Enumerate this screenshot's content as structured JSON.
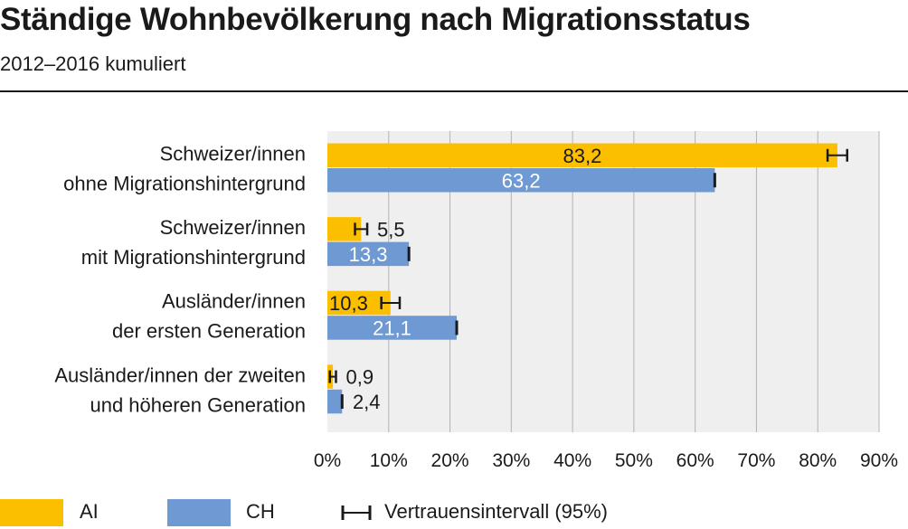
{
  "header": {
    "title": "Ständige Wohnbevölkerung nach Migrationsstatus",
    "subtitle": "2012–2016 kumuliert"
  },
  "legend": {
    "items": [
      {
        "label": "AI",
        "color": "#fbbf00"
      },
      {
        "label": "CH",
        "color": "#6f99d2"
      }
    ],
    "ci_label": "Vertrauensintervall (95%)"
  },
  "chart_data": {
    "type": "bar",
    "orientation": "horizontal",
    "xlim": [
      0,
      90
    ],
    "ticks": [
      0,
      10,
      20,
      30,
      40,
      50,
      60,
      70,
      80,
      90
    ],
    "tick_labels": [
      "0%",
      "10%",
      "20%",
      "30%",
      "40%",
      "50%",
      "60%",
      "70%",
      "80%",
      "90%"
    ],
    "grid": true,
    "legend_position": "bottom",
    "categories": [
      [
        "Schweizer/innen",
        "ohne Migrationshintergrund"
      ],
      [
        "Schweizer/innen",
        "mit Migrationshintergrund"
      ],
      [
        "Ausländer/innen",
        "der ersten Generation"
      ],
      [
        "Ausländer/innen der zweiten",
        "und höheren Generation"
      ]
    ],
    "series": [
      {
        "name": "AI",
        "color": "#fbbf00",
        "values": [
          83.2,
          5.5,
          10.3,
          0.9
        ],
        "labels": [
          "83,2",
          "5,5",
          "10,3",
          "0,9"
        ],
        "ci": [
          [
            81.6,
            84.8
          ],
          [
            4.5,
            6.5
          ],
          [
            8.8,
            11.8
          ],
          [
            0.4,
            1.4
          ]
        ]
      },
      {
        "name": "CH",
        "color": "#6f99d2",
        "values": [
          63.2,
          13.3,
          21.1,
          2.4
        ],
        "labels": [
          "63,2",
          "13,3",
          "21,1",
          "2,4"
        ],
        "ci": [
          [
            63.1,
            63.3
          ],
          [
            13.2,
            13.4
          ],
          [
            21.0,
            21.2
          ],
          [
            2.3,
            2.5
          ]
        ]
      }
    ]
  }
}
